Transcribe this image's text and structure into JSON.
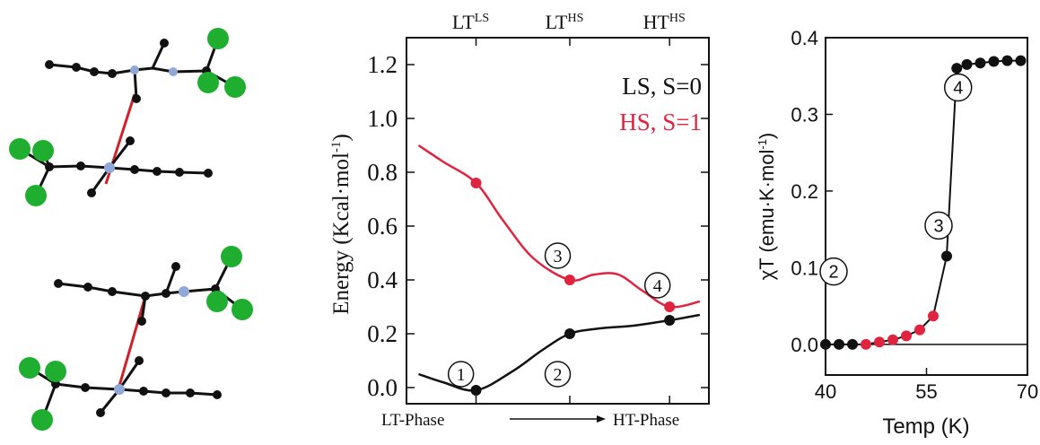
{
  "molecules": {
    "atom_colors": {
      "carbon": "#111111",
      "nitrogen": "#8fa8d8",
      "chlorine": "#1fae2f",
      "contact": "#d0202a"
    },
    "icon": "molecular-dimer-structure"
  },
  "chart_data": [
    {
      "type": "line",
      "title": "",
      "xlabel": "LT-Phase",
      "xlabel_end": "HT-Phase",
      "ylabel": "Energy (Kcal·mol",
      "ylabel_sup": "-1",
      "ylabel_close": ")",
      "ylim": [
        -0.06,
        1.3
      ],
      "yticks": [
        "0.0",
        "0.2",
        "0.4",
        "0.6",
        "0.8",
        "1.0",
        "1.2"
      ],
      "top_ticks": [
        {
          "base": "LT",
          "sup": "LS",
          "x": 0.23
        },
        {
          "base": "LT",
          "sup": "HS",
          "x": 0.54
        },
        {
          "base": "HT",
          "sup": "HS",
          "x": 0.87
        }
      ],
      "xlim": [
        0,
        1
      ],
      "grid": false,
      "legend": "top-right",
      "series": [
        {
          "name": "LS, S=0",
          "color": "#111111",
          "curve": [
            [
              0.04,
              0.05
            ],
            [
              0.12,
              0.02
            ],
            [
              0.23,
              -0.01
            ],
            [
              0.35,
              0.06
            ],
            [
              0.45,
              0.14
            ],
            [
              0.54,
              0.2
            ],
            [
              0.64,
              0.22
            ],
            [
              0.75,
              0.23
            ],
            [
              0.87,
              0.25
            ],
            [
              0.97,
              0.27
            ]
          ],
          "points": [
            [
              0.23,
              -0.01
            ],
            [
              0.54,
              0.2
            ],
            [
              0.87,
              0.25
            ]
          ]
        },
        {
          "name": "HS, S=1",
          "color": "#e0243f",
          "curve": [
            [
              0.04,
              0.9
            ],
            [
              0.12,
              0.84
            ],
            [
              0.23,
              0.76
            ],
            [
              0.32,
              0.62
            ],
            [
              0.42,
              0.48
            ],
            [
              0.54,
              0.4
            ],
            [
              0.62,
              0.42
            ],
            [
              0.7,
              0.42
            ],
            [
              0.78,
              0.36
            ],
            [
              0.87,
              0.3
            ],
            [
              0.97,
              0.32
            ]
          ],
          "points": [
            [
              0.23,
              0.76
            ],
            [
              0.54,
              0.4
            ],
            [
              0.87,
              0.3
            ]
          ]
        }
      ],
      "annotations": [
        {
          "label": "1",
          "x": 0.18,
          "y": 0.05
        },
        {
          "label": "2",
          "x": 0.5,
          "y": 0.05
        },
        {
          "label": "3",
          "x": 0.5,
          "y": 0.49
        },
        {
          "label": "4",
          "x": 0.83,
          "y": 0.38
        }
      ]
    },
    {
      "type": "scatter",
      "title": "",
      "xlabel": "Temp (K)",
      "ylabel": "χT (emu·K·mol",
      "ylabel_sup": "-1",
      "ylabel_close": ")",
      "xlim": [
        40,
        70
      ],
      "ylim": [
        -0.04,
        0.4
      ],
      "xticks": [
        "40",
        "55",
        "70"
      ],
      "yticks": [
        "0.0",
        "0.1",
        "0.2",
        "0.3",
        "0.4"
      ],
      "grid": false,
      "baseline": 0.0,
      "series": [
        {
          "name": "",
          "color": "#111111",
          "line_color": "#111111",
          "x": [
            40,
            42,
            44,
            58,
            59.5,
            61,
            63,
            65,
            67,
            69
          ],
          "y": [
            0.0,
            0.0,
            0.0,
            0.115,
            0.36,
            0.365,
            0.367,
            0.369,
            0.37,
            0.37
          ]
        },
        {
          "name": "",
          "color": "#e0243f",
          "line_color": "#111111",
          "x": [
            46,
            48,
            50,
            52,
            54,
            56
          ],
          "y": [
            0.0,
            0.003,
            0.006,
            0.011,
            0.019,
            0.037
          ]
        }
      ],
      "curve": [
        [
          40,
          0.0
        ],
        [
          46,
          0.0
        ],
        [
          48,
          0.003
        ],
        [
          50,
          0.006
        ],
        [
          52,
          0.011
        ],
        [
          54,
          0.019
        ],
        [
          56,
          0.037
        ],
        [
          58,
          0.115
        ],
        [
          59.5,
          0.36
        ],
        [
          61,
          0.365
        ],
        [
          63,
          0.367
        ],
        [
          65,
          0.369
        ],
        [
          67,
          0.37
        ],
        [
          69.5,
          0.37
        ]
      ],
      "annotations": [
        {
          "label": "2",
          "x": 41.2,
          "y": 0.095
        },
        {
          "label": "3",
          "x": 56.8,
          "y": 0.155
        },
        {
          "label": "4",
          "x": 59.7,
          "y": 0.335
        }
      ]
    }
  ]
}
